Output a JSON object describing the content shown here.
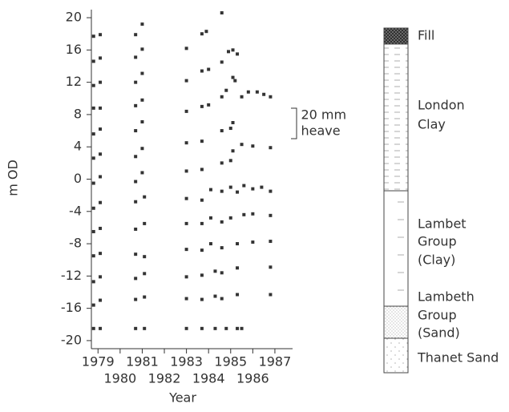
{
  "chart_data": {
    "type": "line",
    "ylabel": "m OD",
    "xlabel": "Year",
    "xlim": [
      1978.7,
      1987.8
    ],
    "ylim": [
      -21,
      21
    ],
    "xticks": [
      1979,
      1980,
      1981,
      1982,
      1983,
      1984,
      1985,
      1986,
      1987
    ],
    "yticks": [
      20,
      16,
      12,
      8,
      4,
      0,
      -4,
      -8,
      -12,
      -16,
      -20
    ],
    "color": "#333333",
    "annotation": {
      "lines": [
        "20 mm",
        "heave"
      ],
      "x": 1987.6,
      "range": [
        9,
        5
      ]
    },
    "series": [
      {
        "style": "solid",
        "x": [
          1978.8,
          1979.1,
          1980.7,
          1981.0
        ],
        "values": [
          17.7,
          17.9,
          17.9,
          19.2
        ]
      },
      {
        "style": "solid",
        "x": [
          1978.8,
          1979.1,
          1980.7,
          1981.0
        ],
        "values": [
          14.6,
          15.0,
          15.1,
          16.1
        ]
      },
      {
        "style": "solid",
        "x": [
          1978.8,
          1979.1,
          1980.7,
          1981.0,
          1983.0,
          1983.7,
          1983.9,
          1984.6
        ],
        "values": [
          11.6,
          12.0,
          12.0,
          13.1,
          16.2,
          18.0,
          18.3,
          20.6
        ]
      },
      {
        "style": "solid",
        "x": [
          1978.8,
          1979.1,
          1980.7,
          1981.0,
          1983.0,
          1983.7,
          1984.0,
          1984.6,
          1984.9,
          1985.1,
          1985.3
        ],
        "values": [
          8.8,
          8.8,
          9.1,
          9.8,
          12.2,
          13.4,
          13.6,
          14.5,
          15.8,
          16.0,
          15.5
        ]
      },
      {
        "style": "solid",
        "x": [
          1978.8,
          1979.1,
          1980.7,
          1981.0,
          1983.0,
          1983.7,
          1984.0,
          1984.6,
          1984.8,
          1985.1,
          1985.2
        ],
        "values": [
          5.6,
          6.2,
          6.0,
          7.1,
          8.4,
          9.0,
          9.2,
          10.2,
          11.0,
          12.6,
          12.2
        ]
      },
      {
        "style": "solid",
        "x": [
          1978.8,
          1979.1,
          1980.7,
          1981.0,
          1983.0,
          1983.7,
          1984.6,
          1985.0,
          1985.1,
          1985.5,
          1985.8,
          1986.2,
          1986.5,
          1986.8
        ],
        "values": [
          2.6,
          3.1,
          2.8,
          3.8,
          4.5,
          4.7,
          6.0,
          6.3,
          7.0,
          10.2,
          10.8,
          10.8,
          10.5,
          10.2
        ]
      },
      {
        "style": "solid",
        "x": [
          1978.8,
          1979.1,
          1980.7,
          1981.0,
          1983.0,
          1983.7,
          1984.6,
          1985.0,
          1985.1,
          1985.5,
          1986.0,
          1986.8
        ],
        "values": [
          -0.5,
          0.3,
          -0.3,
          0.8,
          1.0,
          1.2,
          2.0,
          2.3,
          3.5,
          4.3,
          4.1,
          3.9
        ]
      },
      {
        "style": "dashed",
        "x": [
          1978.8,
          1979.3,
          1979.8,
          1980.7,
          1981.0,
          1983.5,
          1984.7,
          1985.1,
          1985.5,
          1986.0,
          1987.6
        ],
        "values": [
          1.4,
          2.6,
          2.2,
          1.8,
          2.2,
          3.6,
          5.0,
          7.3,
          6.7,
          7.2,
          7.0
        ]
      },
      {
        "style": "dashed",
        "x": [
          1978.8,
          1979.5,
          1980.7,
          1981.0,
          1983.7,
          1984.7,
          1985.1,
          1985.5,
          1986.5,
          1987.6
        ],
        "values": [
          -1.1,
          -0.6,
          -1.2,
          -0.8,
          0.0,
          1.0,
          2.3,
          1.5,
          1.9,
          1.8
        ]
      },
      {
        "style": "solid",
        "x": [
          1978.8,
          1979.1,
          1980.7,
          1981.1,
          1983.0,
          1983.7,
          1984.1,
          1984.6,
          1985.0,
          1985.3,
          1985.6,
          1986.0,
          1986.4,
          1986.8
        ],
        "values": [
          -3.6,
          -2.9,
          -2.8,
          -2.2,
          -2.4,
          -2.6,
          -1.3,
          -1.5,
          -1.0,
          -1.6,
          -0.8,
          -1.2,
          -1.0,
          -1.5
        ]
      },
      {
        "style": "solid",
        "x": [
          1978.8,
          1979.1,
          1980.7,
          1981.1,
          1983.0,
          1983.7,
          1984.1,
          1984.6,
          1985.0,
          1985.6,
          1986.0,
          1986.8
        ],
        "values": [
          -6.5,
          -6.1,
          -6.2,
          -5.5,
          -5.5,
          -5.5,
          -4.8,
          -5.3,
          -4.8,
          -4.4,
          -4.3,
          -4.5
        ]
      },
      {
        "style": "solid",
        "x": [
          1978.8,
          1979.1,
          1980.7,
          1981.1,
          1983.0,
          1983.7,
          1984.1,
          1984.6,
          1985.3,
          1986.0,
          1986.8
        ],
        "values": [
          -9.5,
          -9.2,
          -9.3,
          -9.6,
          -8.7,
          -8.8,
          -8.0,
          -8.5,
          -8.0,
          -7.8,
          -7.7
        ]
      },
      {
        "style": "solid",
        "x": [
          1978.8,
          1979.1,
          1980.7,
          1981.1,
          1983.0,
          1983.7,
          1984.3,
          1984.6,
          1985.3,
          1986.8
        ],
        "values": [
          -12.7,
          -12.1,
          -12.3,
          -11.7,
          -12.1,
          -11.9,
          -11.4,
          -11.6,
          -11.0,
          -10.9
        ]
      },
      {
        "style": "solid",
        "x": [
          1978.8,
          1979.1,
          1980.7,
          1981.1,
          1983.0,
          1983.7,
          1984.3,
          1984.6,
          1985.3,
          1986.8
        ],
        "values": [
          -15.6,
          -15.0,
          -14.9,
          -14.6,
          -14.8,
          -14.9,
          -14.5,
          -14.8,
          -14.3,
          -14.3
        ]
      },
      {
        "style": "solid",
        "x": [
          1978.8,
          1979.1,
          1980.7,
          1981.1,
          1983.0,
          1983.7,
          1984.3,
          1984.8,
          1985.3,
          1985.5
        ],
        "values": [
          -18.5,
          -18.5,
          -18.5,
          -18.5,
          -18.5,
          -18.5,
          -18.5,
          -18.5,
          -18.5,
          -18.5
        ]
      }
    ]
  },
  "strata": [
    {
      "lines": [
        "Fill"
      ]
    },
    {
      "lines": [
        "London",
        "Clay"
      ]
    },
    {
      "lines": [
        "Lambet",
        "Group",
        "(Clay)"
      ]
    },
    {
      "lines": [
        "Lambeth",
        "Group",
        "(Sand)"
      ]
    },
    {
      "lines": [
        "Thanet Sand"
      ]
    }
  ]
}
